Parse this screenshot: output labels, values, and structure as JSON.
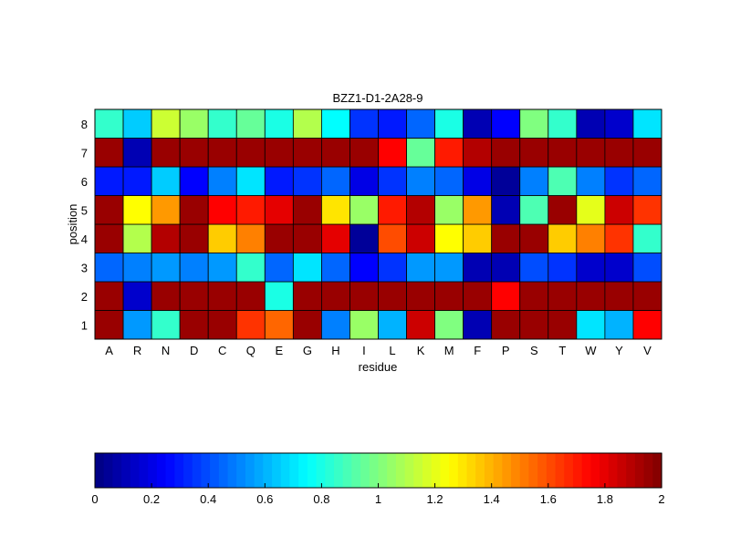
{
  "chart_data": {
    "type": "heatmap",
    "title": "BZZ1-D1-2A28-9",
    "xlabel": "residue",
    "ylabel": "position",
    "x_categories": [
      "A",
      "R",
      "N",
      "D",
      "C",
      "Q",
      "E",
      "G",
      "H",
      "I",
      "L",
      "K",
      "M",
      "F",
      "P",
      "S",
      "T",
      "W",
      "Y",
      "V"
    ],
    "y_categories": [
      "1",
      "2",
      "3",
      "4",
      "5",
      "6",
      "7",
      "8"
    ],
    "colormap": "jet",
    "color_range": [
      0,
      2
    ],
    "colorbar_ticks": [
      "0",
      "0.2",
      "0.4",
      "0.6",
      "0.8",
      "1",
      "1.2",
      "1.4",
      "1.6",
      "1.8",
      "2"
    ],
    "values": [
      [
        1.95,
        0.55,
        0.85,
        1.95,
        1.95,
        1.65,
        1.55,
        1.95,
        0.5,
        1.05,
        0.6,
        1.85,
        1.0,
        0.1,
        1.95,
        1.95,
        1.95,
        0.7,
        0.6,
        1.75
      ],
      [
        1.95,
        0.15,
        1.95,
        1.95,
        1.95,
        1.95,
        0.8,
        1.95,
        1.95,
        1.95,
        1.95,
        1.95,
        1.95,
        1.95,
        1.75,
        1.95,
        1.95,
        1.95,
        1.95,
        1.95
      ],
      [
        0.45,
        0.5,
        0.55,
        0.5,
        0.55,
        0.85,
        0.45,
        0.7,
        0.45,
        0.25,
        0.35,
        0.55,
        0.55,
        0.1,
        0.1,
        0.4,
        0.35,
        0.15,
        0.15,
        0.4
      ],
      [
        1.95,
        1.1,
        1.9,
        1.95,
        1.35,
        1.5,
        1.95,
        1.95,
        1.8,
        0.05,
        1.6,
        1.85,
        1.25,
        1.35,
        1.95,
        1.95,
        1.35,
        1.5,
        1.65,
        0.85
      ],
      [
        1.95,
        1.25,
        1.45,
        1.95,
        1.75,
        1.7,
        1.8,
        1.95,
        1.3,
        1.05,
        1.7,
        1.9,
        1.05,
        1.45,
        0.1,
        0.9,
        1.95,
        1.2,
        1.85,
        1.65
      ],
      [
        0.3,
        0.3,
        0.65,
        0.25,
        0.5,
        0.7,
        0.3,
        0.35,
        0.45,
        0.2,
        0.35,
        0.5,
        0.45,
        0.2,
        0.05,
        0.5,
        0.9,
        0.5,
        0.35,
        0.45
      ],
      [
        1.95,
        0.1,
        1.95,
        1.95,
        1.95,
        1.95,
        1.95,
        1.95,
        1.95,
        1.95,
        1.75,
        0.95,
        1.7,
        1.9,
        1.95,
        1.95,
        1.95,
        1.95,
        1.95,
        1.95
      ],
      [
        0.85,
        0.65,
        1.15,
        1.05,
        0.85,
        0.95,
        0.8,
        1.1,
        0.75,
        0.35,
        0.3,
        0.45,
        0.8,
        0.1,
        0.25,
        1.0,
        0.85,
        0.1,
        0.15,
        0.7
      ]
    ]
  }
}
